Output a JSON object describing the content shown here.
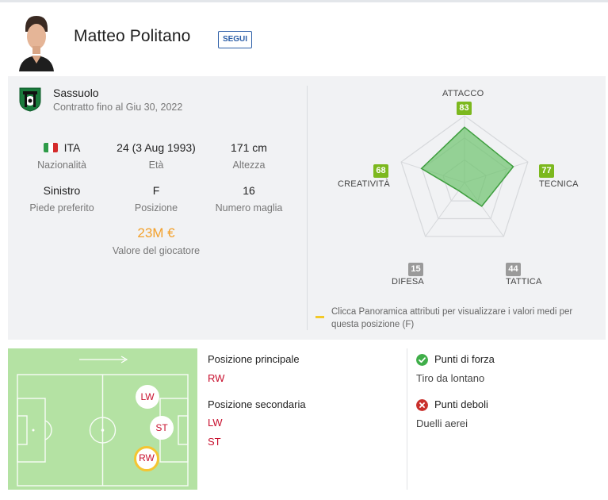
{
  "player": {
    "name": "Matteo Politano",
    "follow_label": "SEGUI"
  },
  "club": {
    "name": "Sassuolo",
    "contract": "Contratto fino al Giu 30, 2022"
  },
  "stats": {
    "nationality": {
      "value": "ITA",
      "label": "Nazionalità"
    },
    "age": {
      "value": "24 (3 Aug 1993)",
      "label": "Età"
    },
    "height": {
      "value": "171 cm",
      "label": "Altezza"
    },
    "foot": {
      "value": "Sinistro",
      "label": "Piede preferito"
    },
    "position": {
      "value": "F",
      "label": "Posizione"
    },
    "shirt": {
      "value": "16",
      "label": "Numero maglia"
    },
    "market_value": {
      "value": "23M €",
      "label": "Valore del giocatore"
    }
  },
  "radar": {
    "attributes": [
      {
        "key": "attacco",
        "label": "ATTACCO",
        "value": 83
      },
      {
        "key": "tecnica",
        "label": "TECNICA",
        "value": 77
      },
      {
        "key": "tattica",
        "label": "TATTICA",
        "value": 44
      },
      {
        "key": "difesa",
        "label": "DIFESA",
        "value": 15
      },
      {
        "key": "creativita",
        "label": "CREATIVITÀ",
        "value": 68
      }
    ],
    "max": 100,
    "legend_note": "Clicca Panoramica attributi per visualizzare i valori medi per questa posizione (F)"
  },
  "positions": {
    "main_title": "Posizione principale",
    "main": [
      "RW"
    ],
    "secondary_title": "Posizione secondaria",
    "secondary": [
      "LW",
      "ST"
    ],
    "pitch_markers": [
      "LW",
      "ST",
      "RW"
    ]
  },
  "traits": {
    "strengths_title": "Punti di forza",
    "strengths": [
      "Tiro da lontano"
    ],
    "weaknesses_title": "Punti deboli",
    "weaknesses": [
      "Duelli aerei"
    ]
  },
  "colors": {
    "green_badge": "#7cb81e",
    "grey_badge": "#9a9a9a",
    "radar_fill": "#6cc36c",
    "position_red": "#c8102e",
    "value_orange": "#f3a02a",
    "follow_blue": "#2d5fa8"
  }
}
